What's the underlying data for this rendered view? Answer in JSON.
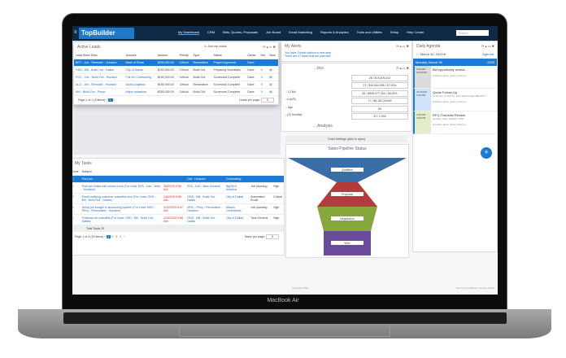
{
  "nav": {
    "logo": "TopBuilder",
    "items": [
      "My Dashboard",
      "CRM",
      "Bids, Quotes, Proposals",
      "Job Board",
      "Email Marketing",
      "Reports & Analytics",
      "Tools and Utilities",
      "Setup",
      "Help Center"
    ],
    "search_placeholder": "Search"
  },
  "alerts": {
    "title": "My Alerts",
    "items": [
      "You have 3 leads without a next step",
      "There are 47 tasks that are past due"
    ]
  },
  "stats": {
    "title": "...tics",
    "rows": [
      {
        "label": "",
        "value": "26 / $75,405,443"
      },
      {
        "label": "",
        "value": "27 / $44,544,055 / 67.00%"
      },
      {
        "label": "... 12 Mo",
        "value": "82 / $906,977,334 / 58.00%"
      },
      {
        "label": "...e (A/S)",
        "value": "17 / $5,182,334/00"
      },
      {
        "label": "... Age",
        "value": "89"
      },
      {
        "label": "...(12 Months)",
        "value": "23 / 1,000"
      }
    ]
  },
  "analysis": {
    "title": "...Analysis",
    "settings": "Chart Settings (click to open)"
  },
  "agenda": {
    "title": "Daily Agenda",
    "date": "March 30, 2020",
    "view": "Agenda",
    "day": "Monday, March 30",
    "year": "2020",
    "events": [
      {
        "time": "9:00 AM 10:00 AM",
        "title": "Bid opportunity review",
        "detail": "",
        "who": "Knowles, Dave (Comm Demo)",
        "color": "#dcdcdc"
      },
      {
        "time": "12:30 PM 1:00 PM",
        "title": "Quote Follow-Up",
        "detail": "Customer is Civil Co. from Wichita 316-999-6677",
        "who": "Knowles, Dave (Comm Demo)",
        "color": "#cfe3fb"
      },
      {
        "time": "3:45 PM 4:00 PM",
        "title": "RFQ Checklist Review",
        "detail": "Houston Apex 358-997-7890",
        "who": "Knowles, Dave (Comm Demo)",
        "color": "#e2eec8"
      }
    ]
  },
  "leads": {
    "title": "Active Leads",
    "only_mine": "Just my Leads",
    "headers": [
      "Lead Short Desc",
      "Account",
      "Amount",
      "Priority",
      "Type",
      "Status",
      "Owner",
      "Hot",
      "Next"
    ],
    "rows": [
      [
        "BOT - Joe - Remodel - Houston",
        "Bank of Texas",
        "$250,000.00",
        "Critical",
        "Restoration",
        "Project Approved",
        "Dave"
      ],
      [
        "ODD - Bill - Build Out - Dallas",
        "City of Dallas",
        "$250,000.00",
        "Critical",
        "Build Out",
        "Preparing Submittals",
        "Dave"
      ],
      [
        "FOC - Joe - Build Out - Houston",
        "Full-On Contracting",
        "$150,000.00",
        "Critical",
        "Build Out",
        "Scorecard Complete",
        "Dave"
      ],
      [
        "ALG - Jim - Remodel - Houston",
        "Alpha Logistics",
        "$150,000.00",
        "Critical",
        "Restoration",
        "Scorecard Complete",
        "Dave"
      ],
      [
        "MH - Build Out - Frisco",
        "Major Industries",
        "$250,000.00",
        "Critical",
        "Build Out",
        "Scorecard Complete",
        "Dave"
      ]
    ],
    "pager": "Page 1 of 1 (5 items)",
    "page": "1",
    "per_page_label": "Leads per page:",
    "per_page": "5"
  },
  "tasks": {
    "title": "My Tasks",
    "headers": [
      "Done",
      "Subject"
    ],
    "rows": [
      [
        "Post job...",
        "",
        "Out - Houston",
        "Contracting",
        "",
        ""
      ],
      [
        "Post job musts with winter icons (For Lead: BTA - Carl - New - Houston)",
        "4/6/2020 9:56 AM",
        "BTA - Carl - New Houston",
        "BigTech America",
        "Job planning",
        "High"
      ],
      [
        "Email notifying customer submittal sent (For Lead: ODD - Bill - Build Out - Dallas)",
        "1/8/2020 9:58 AM",
        "ODD - Bill - Build Out - Dallas",
        "City of Dallas",
        "Automated Email",
        "Critical"
      ],
      [
        "Setup job budget in accounting system (For Lead: MSC - Perry - Renovation - Houston)",
        "3/10/2020 9:57 AM",
        "MSC - Perry - Renovation - Houston",
        "Mason Contractors",
        "Job planning",
        "High"
      ],
      [
        "Followup on submittal (For Lead: ODD - Bill - Build Out - Dallas)",
        "1/15/2020 9:58 AM",
        "ODD - Bill - Build Out - Dallas",
        "City of Dallas",
        "Task General",
        "High"
      ]
    ],
    "total": "Total Tasks 20",
    "pager": "Page 1 of 4 (20 items)",
    "pages": [
      "1",
      "2",
      "3",
      "4"
    ],
    "per_page_label": "Tasks per page:",
    "per_page": "5"
  },
  "chart_data": {
    "type": "funnel",
    "title": "Sales Pipeline Status",
    "stages": [
      {
        "label": "Qualified",
        "color": "#3a6ea8"
      },
      {
        "label": "Proposal",
        "color": "#b23b3b"
      },
      {
        "label": "Negotiation",
        "color": "#86a83a"
      },
      {
        "label": "Won",
        "color": "#6a4a9a"
      }
    ]
  },
  "footer": {
    "left": "Copyright 2020",
    "right": "Terms & Conditions | Privacy Policy"
  },
  "device": "MacBook Air"
}
